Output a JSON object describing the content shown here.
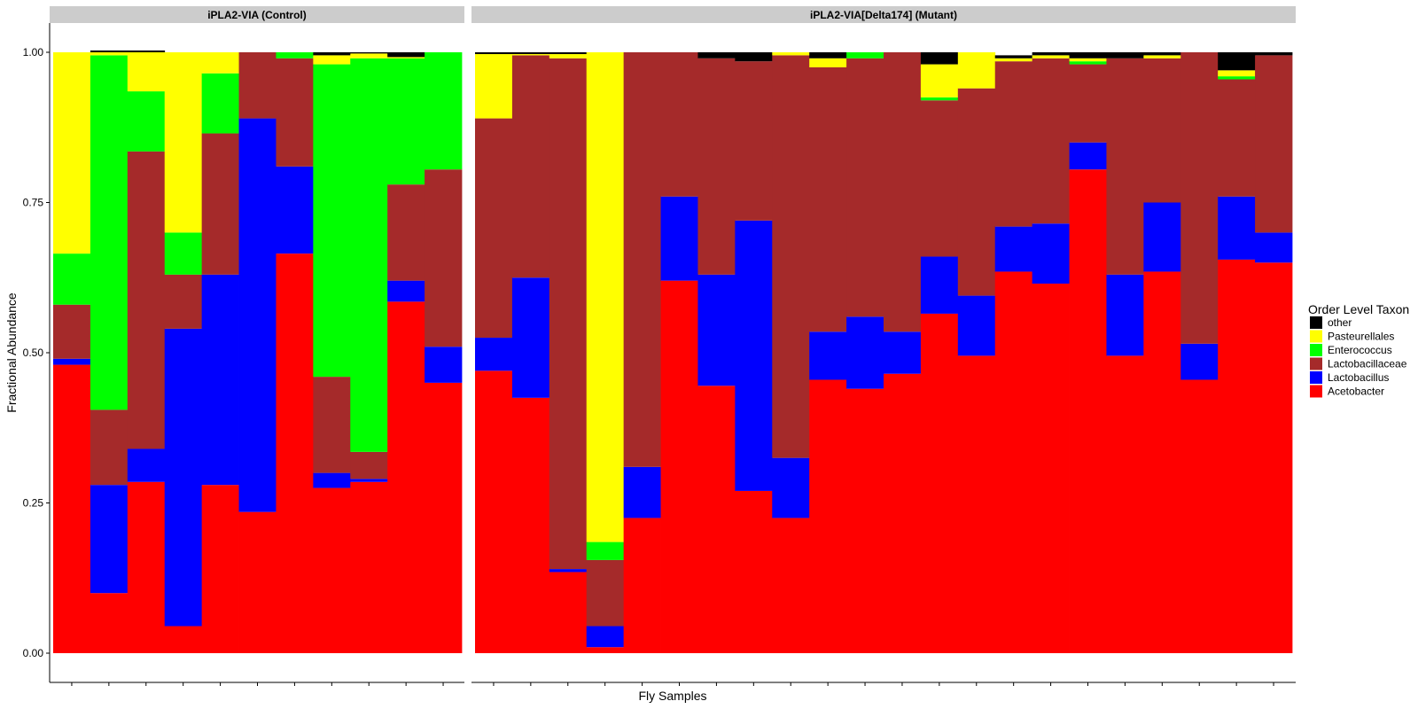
{
  "chart_data": {
    "type": "bar",
    "stacked": true,
    "xlabel": "Fly Samples",
    "ylabel": "Fractional Abundance",
    "ylim": [
      0,
      1
    ],
    "yticks": [
      "0.00",
      "0.25",
      "0.50",
      "0.75",
      "1.00"
    ],
    "grid": false,
    "legend": {
      "title": "Order Level Taxon",
      "position": "right",
      "entries": [
        {
          "name": "other",
          "color": "#000000"
        },
        {
          "name": "Pasteurellales",
          "color": "#ffff00"
        },
        {
          "name": "Enterococcus",
          "color": "#00ff00"
        },
        {
          "name": "Lactobacillaceae",
          "color": "#a52a2a"
        },
        {
          "name": "Lactobacillus",
          "color": "#0000ff"
        },
        {
          "name": "Acetobacter",
          "color": "#ff0000"
        }
      ]
    },
    "stack_order": [
      "Acetobacter",
      "Lactobacillus",
      "Lactobacillaceae",
      "Enterococcus",
      "Pasteurellales",
      "other"
    ],
    "facets": [
      {
        "title": "iPLA2-VIA (Control)",
        "samples": [
          {
            "Acetobacter": 0.48,
            "Lactobacillus": 0.01,
            "Lactobacillaceae": 0.09,
            "Enterococcus": 0.085,
            "Pasteurellales": 0.335,
            "other": 0.0
          },
          {
            "Acetobacter": 0.1,
            "Lactobacillus": 0.18,
            "Lactobacillaceae": 0.125,
            "Enterococcus": 0.59,
            "Pasteurellales": 0.005,
            "other": 0.003
          },
          {
            "Acetobacter": 0.285,
            "Lactobacillus": 0.055,
            "Lactobacillaceae": 0.495,
            "Enterococcus": 0.1,
            "Pasteurellales": 0.065,
            "other": 0.003
          },
          {
            "Acetobacter": 0.045,
            "Lactobacillus": 0.495,
            "Lactobacillaceae": 0.09,
            "Enterococcus": 0.07,
            "Pasteurellales": 0.3,
            "other": 0.0
          },
          {
            "Acetobacter": 0.28,
            "Lactobacillus": 0.35,
            "Lactobacillaceae": 0.235,
            "Enterococcus": 0.1,
            "Pasteurellales": 0.035,
            "other": 0.0
          },
          {
            "Acetobacter": 0.235,
            "Lactobacillus": 0.655,
            "Lactobacillaceae": 0.11,
            "Enterococcus": 0.0,
            "Pasteurellales": 0.0,
            "other": 0.0
          },
          {
            "Acetobacter": 0.665,
            "Lactobacillus": 0.145,
            "Lactobacillaceae": 0.18,
            "Enterococcus": 0.01,
            "Pasteurellales": 0.0,
            "other": 0.0
          },
          {
            "Acetobacter": 0.275,
            "Lactobacillus": 0.025,
            "Lactobacillaceae": 0.16,
            "Enterococcus": 0.52,
            "Pasteurellales": 0.015,
            "other": 0.005
          },
          {
            "Acetobacter": 0.285,
            "Lactobacillus": 0.005,
            "Lactobacillaceae": 0.045,
            "Enterococcus": 0.655,
            "Pasteurellales": 0.008,
            "other": 0.002
          },
          {
            "Acetobacter": 0.585,
            "Lactobacillus": 0.035,
            "Lactobacillaceae": 0.16,
            "Enterococcus": 0.21,
            "Pasteurellales": 0.002,
            "other": 0.008
          },
          {
            "Acetobacter": 0.45,
            "Lactobacillus": 0.06,
            "Lactobacillaceae": 0.295,
            "Enterococcus": 0.195,
            "Pasteurellales": 0.0,
            "other": 0.0
          }
        ]
      },
      {
        "title": "iPLA2-VIA[Delta174] (Mutant)",
        "samples": [
          {
            "Acetobacter": 0.47,
            "Lactobacillus": 0.055,
            "Lactobacillaceae": 0.365,
            "Enterococcus": 0.0,
            "Pasteurellales": 0.107,
            "other": 0.003
          },
          {
            "Acetobacter": 0.425,
            "Lactobacillus": 0.2,
            "Lactobacillaceae": 0.37,
            "Enterococcus": 0.0,
            "Pasteurellales": 0.002,
            "other": 0.003
          },
          {
            "Acetobacter": 0.135,
            "Lactobacillus": 0.005,
            "Lactobacillaceae": 0.85,
            "Enterococcus": 0.0,
            "Pasteurellales": 0.007,
            "other": 0.003
          },
          {
            "Acetobacter": 0.01,
            "Lactobacillus": 0.035,
            "Lactobacillaceae": 0.11,
            "Enterococcus": 0.03,
            "Pasteurellales": 0.815,
            "other": 0.0
          },
          {
            "Acetobacter": 0.225,
            "Lactobacillus": 0.085,
            "Lactobacillaceae": 0.69,
            "Enterococcus": 0.0,
            "Pasteurellales": 0.0,
            "other": 0.0
          },
          {
            "Acetobacter": 0.62,
            "Lactobacillus": 0.14,
            "Lactobacillaceae": 0.24,
            "Enterococcus": 0.0,
            "Pasteurellales": 0.0,
            "other": 0.0
          },
          {
            "Acetobacter": 0.445,
            "Lactobacillus": 0.185,
            "Lactobacillaceae": 0.36,
            "Enterococcus": 0.0,
            "Pasteurellales": 0.0,
            "other": 0.01
          },
          {
            "Acetobacter": 0.27,
            "Lactobacillus": 0.45,
            "Lactobacillaceae": 0.265,
            "Enterococcus": 0.0,
            "Pasteurellales": 0.0,
            "other": 0.015
          },
          {
            "Acetobacter": 0.225,
            "Lactobacillus": 0.1,
            "Lactobacillaceae": 0.67,
            "Enterococcus": 0.0,
            "Pasteurellales": 0.005,
            "other": 0.0
          },
          {
            "Acetobacter": 0.455,
            "Lactobacillus": 0.08,
            "Lactobacillaceae": 0.44,
            "Enterococcus": 0.0,
            "Pasteurellales": 0.015,
            "other": 0.01
          },
          {
            "Acetobacter": 0.44,
            "Lactobacillus": 0.12,
            "Lactobacillaceae": 0.43,
            "Enterococcus": 0.01,
            "Pasteurellales": 0.0,
            "other": 0.0
          },
          {
            "Acetobacter": 0.465,
            "Lactobacillus": 0.07,
            "Lactobacillaceae": 0.465,
            "Enterococcus": 0.0,
            "Pasteurellales": 0.0,
            "other": 0.0
          },
          {
            "Acetobacter": 0.565,
            "Lactobacillus": 0.095,
            "Lactobacillaceae": 0.26,
            "Enterococcus": 0.005,
            "Pasteurellales": 0.055,
            "other": 0.02
          },
          {
            "Acetobacter": 0.495,
            "Lactobacillus": 0.1,
            "Lactobacillaceae": 0.345,
            "Enterococcus": 0.0,
            "Pasteurellales": 0.06,
            "other": 0.0
          },
          {
            "Acetobacter": 0.635,
            "Lactobacillus": 0.075,
            "Lactobacillaceae": 0.275,
            "Enterococcus": 0.0,
            "Pasteurellales": 0.005,
            "other": 0.005
          },
          {
            "Acetobacter": 0.615,
            "Lactobacillus": 0.1,
            "Lactobacillaceae": 0.275,
            "Enterococcus": 0.0,
            "Pasteurellales": 0.005,
            "other": 0.005
          },
          {
            "Acetobacter": 0.805,
            "Lactobacillus": 0.045,
            "Lactobacillaceae": 0.13,
            "Enterococcus": 0.005,
            "Pasteurellales": 0.005,
            "other": 0.01
          },
          {
            "Acetobacter": 0.495,
            "Lactobacillus": 0.135,
            "Lactobacillaceae": 0.36,
            "Enterococcus": 0.0,
            "Pasteurellales": 0.0,
            "other": 0.01
          },
          {
            "Acetobacter": 0.635,
            "Lactobacillus": 0.115,
            "Lactobacillaceae": 0.24,
            "Enterococcus": 0.0,
            "Pasteurellales": 0.005,
            "other": 0.005
          },
          {
            "Acetobacter": 0.455,
            "Lactobacillus": 0.06,
            "Lactobacillaceae": 0.485,
            "Enterococcus": 0.0,
            "Pasteurellales": 0.0,
            "other": 0.0
          },
          {
            "Acetobacter": 0.655,
            "Lactobacillus": 0.105,
            "Lactobacillaceae": 0.195,
            "Enterococcus": 0.005,
            "Pasteurellales": 0.01,
            "other": 0.03
          },
          {
            "Acetobacter": 0.65,
            "Lactobacillus": 0.05,
            "Lactobacillaceae": 0.295,
            "Enterococcus": 0.0,
            "Pasteurellales": 0.0,
            "other": 0.005
          }
        ]
      }
    ]
  }
}
